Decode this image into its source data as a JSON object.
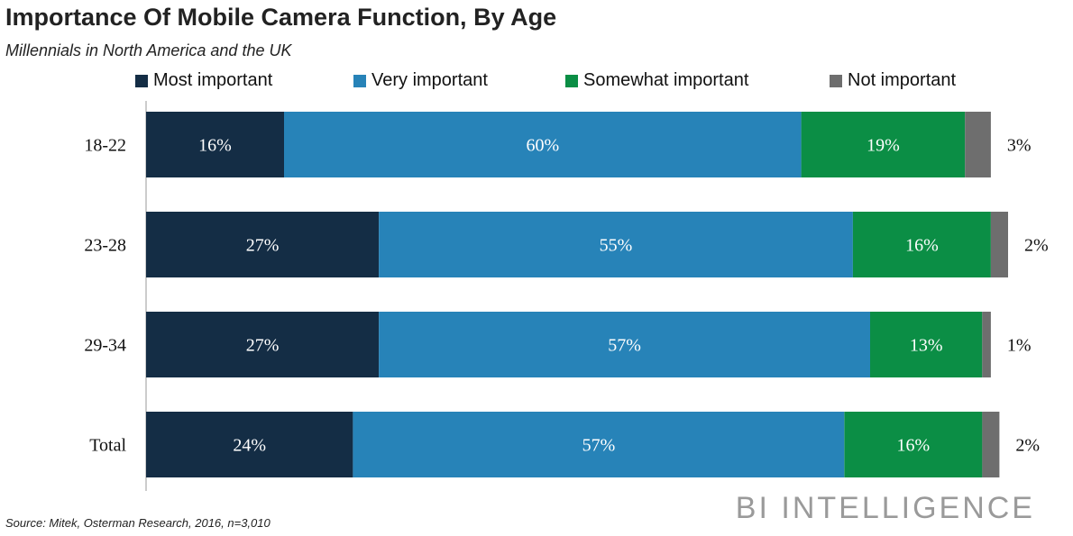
{
  "chart_data": {
    "type": "bar",
    "orientation": "horizontal",
    "stacked": true,
    "title": "Importance Of Mobile Camera Function, By Age",
    "subtitle": "Millennials in North America and the UK",
    "categories": [
      "18-22",
      "23-28",
      "29-34",
      "Total"
    ],
    "series": [
      {
        "name": "Most important",
        "color": "#142d45",
        "values": [
          16,
          27,
          27,
          24
        ],
        "labels": [
          "16%",
          "27%",
          "27%",
          "24%"
        ]
      },
      {
        "name": "Very important",
        "color": "#2783b8",
        "values": [
          60,
          55,
          57,
          57
        ],
        "labels": [
          "60%",
          "55%",
          "57%",
          "57%"
        ]
      },
      {
        "name": "Somewhat important",
        "color": "#0b8e45",
        "values": [
          19,
          16,
          13,
          16
        ],
        "labels": [
          "19%",
          "16%",
          "13%",
          "16%"
        ]
      },
      {
        "name": "Not important",
        "color": "#6e6e6e",
        "values": [
          3,
          2,
          1,
          2
        ],
        "labels": [
          "3%",
          "2%",
          "1%",
          "2%"
        ]
      }
    ],
    "xlim": [
      0,
      100
    ],
    "grid": false,
    "legend": "top"
  },
  "source": "Source: Mitek, Osterman Research, 2016, n=3,010",
  "brand": "BI INTELLIGENCE"
}
